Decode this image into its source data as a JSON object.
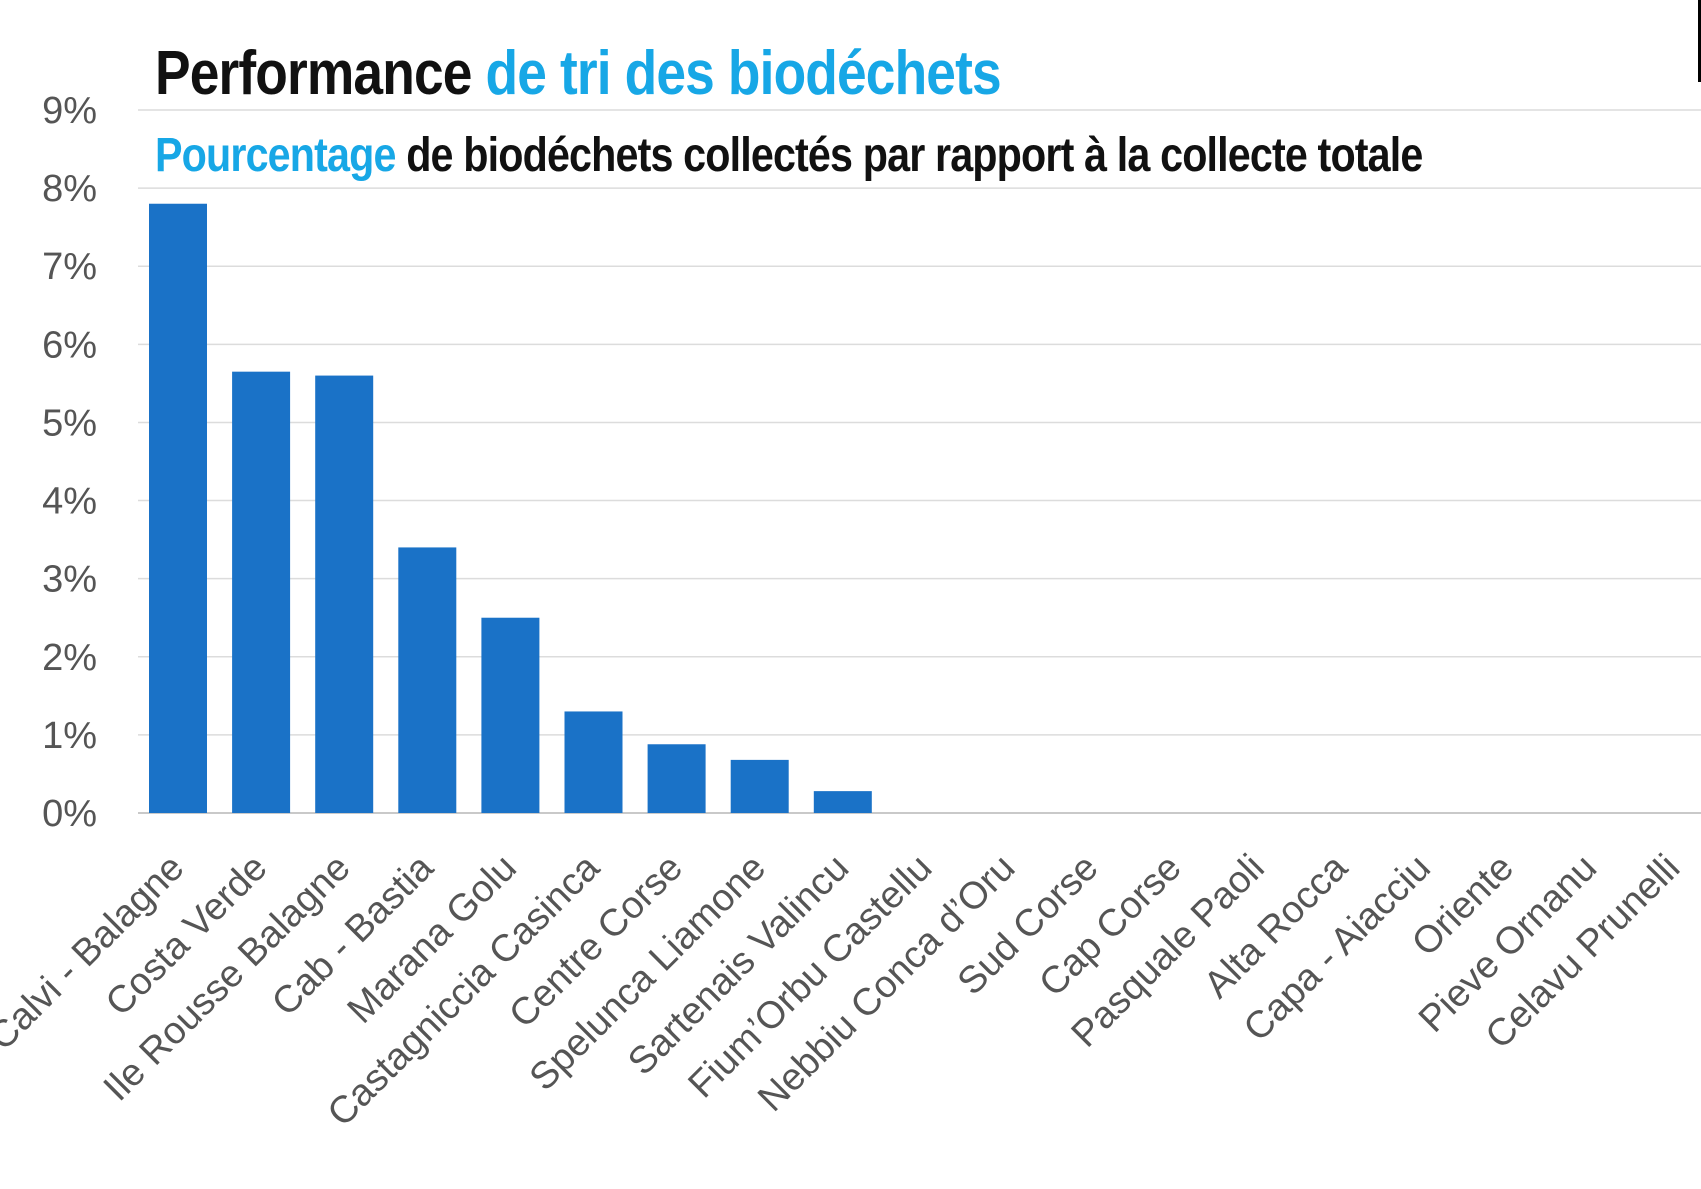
{
  "chart_data": {
    "type": "bar",
    "title": {
      "part1": "Performance",
      "part2": "de tri des biodéchets"
    },
    "subtitle": {
      "part1": "Pourcentage",
      "part2": "de biodéchets collectés par rapport à la collecte totale"
    },
    "categories": [
      "Calvi - Balagne",
      "Costa Verde",
      "Ile Rousse Balagne",
      "Cab - Bastia",
      "Marana Golu",
      "Castagniccia Casinca",
      "Centre Corse",
      "Spelunca Liamone",
      "Sartenais Valincu",
      "Fium’Orbu Castellu",
      "Nebbiu Conca d’Oru",
      "Sud Corse",
      "Cap Corse",
      "Pasquale Paoli",
      "Alta Rocca",
      "Capa - Aiacciu",
      "Oriente",
      "Pieve Ornanu",
      "Celavu Prunelli"
    ],
    "values": [
      7.8,
      5.65,
      5.6,
      3.4,
      2.5,
      1.3,
      0.88,
      0.68,
      0.28,
      0,
      0,
      0,
      0,
      0,
      0,
      0,
      0,
      0,
      0
    ],
    "ylim": [
      0,
      9
    ],
    "yticks": [
      "0%",
      "1%",
      "2%",
      "3%",
      "4%",
      "5%",
      "6%",
      "7%",
      "8%",
      "9%"
    ],
    "grid": true,
    "bar_color": "#1a72c7",
    "title_accent_color": "#17a7e6",
    "title_dark_color": "#111111"
  }
}
